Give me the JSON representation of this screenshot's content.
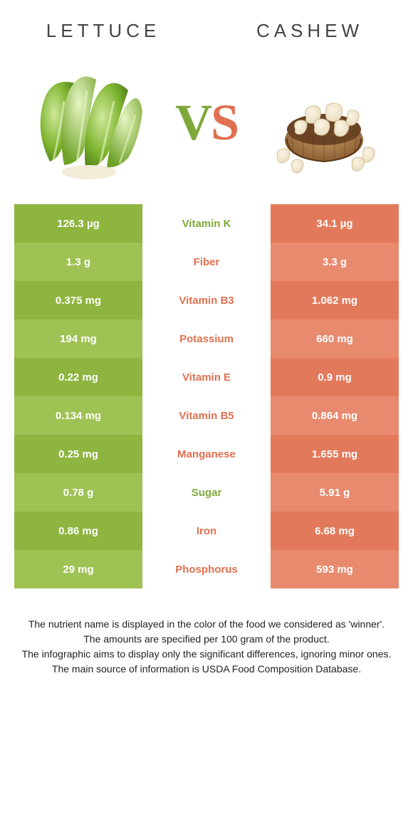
{
  "header": {
    "left": "LETTUCE",
    "right": "CASHEW"
  },
  "vs": {
    "v": "V",
    "s": "S"
  },
  "colors": {
    "lettuce_bg_a": "#8eb53f",
    "lettuce_bg_b": "#9fc255",
    "cashew_bg_a": "#e3795b",
    "cashew_bg_b": "#e88a6e",
    "lettuce_text": "#7fa83a",
    "cashew_text": "#e07050",
    "mid_bg": "#ffffff",
    "cell_text": "#ffffff"
  },
  "rows": [
    {
      "left": "126.3 µg",
      "mid": "Vitamin K",
      "right": "34.1 µg",
      "winner": "lettuce"
    },
    {
      "left": "1.3 g",
      "mid": "Fiber",
      "right": "3.3 g",
      "winner": "cashew"
    },
    {
      "left": "0.375 mg",
      "mid": "Vitamin B3",
      "right": "1.062 mg",
      "winner": "cashew"
    },
    {
      "left": "194 mg",
      "mid": "Potassium",
      "right": "660 mg",
      "winner": "cashew"
    },
    {
      "left": "0.22 mg",
      "mid": "Vitamin E",
      "right": "0.9 mg",
      "winner": "cashew"
    },
    {
      "left": "0.134 mg",
      "mid": "Vitamin B5",
      "right": "0.864 mg",
      "winner": "cashew"
    },
    {
      "left": "0.25 mg",
      "mid": "Manganese",
      "right": "1.655 mg",
      "winner": "cashew"
    },
    {
      "left": "0.78 g",
      "mid": "Sugar",
      "right": "5.91 g",
      "winner": "lettuce"
    },
    {
      "left": "0.86 mg",
      "mid": "Iron",
      "right": "6.68 mg",
      "winner": "cashew"
    },
    {
      "left": "29 mg",
      "mid": "Phosphorus",
      "right": "593 mg",
      "winner": "cashew"
    }
  ],
  "footer": {
    "l1": "The nutrient name is displayed in the color of the food we considered as 'winner'.",
    "l2": "The amounts are specified per 100 gram of the product.",
    "l3": "The infographic aims to display only the significant differences, ignoring minor ones.",
    "l4": "The main source of information is USDA Food Composition Database."
  }
}
